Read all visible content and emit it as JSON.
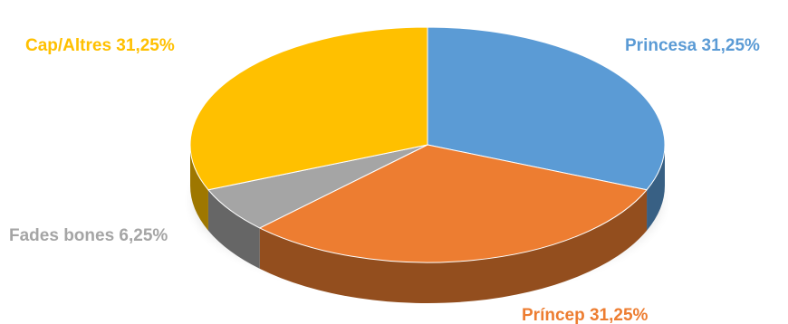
{
  "chart_data": {
    "type": "pie",
    "style": "3d",
    "title": "",
    "slices": [
      {
        "label": "Princesa",
        "value": 31.25,
        "display": "31,25%",
        "text": "Princesa 31,25%",
        "color": "#5B9BD5"
      },
      {
        "label": "Príncep",
        "value": 31.25,
        "display": "31,25%",
        "text": "Príncep 31,25%",
        "color": "#ED7D31"
      },
      {
        "label": "Fades bones",
        "value": 6.25,
        "display": "6,25%",
        "text": "Fades bones 6,25%",
        "color": "#A5A5A5"
      },
      {
        "label": "Cap/Altres",
        "value": 31.25,
        "display": "31,25%",
        "text": "Cap/Altres 31,25%",
        "color": "#FFC000"
      }
    ],
    "legend": "none",
    "data_labels": "outside"
  }
}
